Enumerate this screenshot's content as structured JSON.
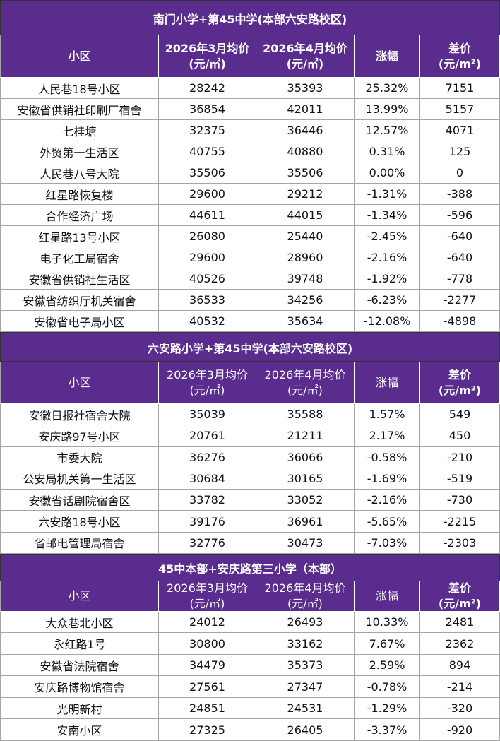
{
  "sections": [
    {
      "title": "南门小学+第45中学(本部六安路校区)",
      "header": [
        [
          "小区"
        ],
        [
          "2026年3月均价",
          "(元/㎡)"
        ],
        [
          "2026年4月均价",
          "(元/㎡)"
        ],
        [
          "涨幅"
        ],
        [
          "差价",
          "(元/m²)"
        ]
      ],
      "rows": [
        [
          "人民巷18号小区",
          "28242",
          "35393",
          "25.32%",
          "7151"
        ],
        [
          "安徽省供销社印刷厂宿舍",
          "36854",
          "42011",
          "13.99%",
          "5157"
        ],
        [
          "七桂塘",
          "32375",
          "36446",
          "12.57%",
          "4071"
        ],
        [
          "外贸第一生活区",
          "40755",
          "40880",
          "0.31%",
          "125"
        ],
        [
          "人民巷八号大院",
          "35506",
          "35506",
          "0.00%",
          "0"
        ],
        [
          "红星路恢复楼",
          "29600",
          "29212",
          "-1.31%",
          "-388"
        ],
        [
          "合作经济广场",
          "44611",
          "44015",
          "-1.34%",
          "-596"
        ],
        [
          "红星路13号小区",
          "26080",
          "25440",
          "-2.45%",
          "-640"
        ],
        [
          "电子化工局宿舍",
          "29600",
          "28960",
          "-2.16%",
          "-640"
        ],
        [
          "安徽省供销社生活区",
          "40526",
          "39748",
          "-1.92%",
          "-778"
        ],
        [
          "安徽省纺织厅机关宿舍",
          "36533",
          "34256",
          "-6.23%",
          "-2277"
        ],
        [
          "安徽省电子局小区",
          "40532",
          "35634",
          "-12.08%",
          "-4898"
        ]
      ]
    },
    {
      "title": "六安路小学+第45中学(本部六安路校区)",
      "header": [
        [
          "小区"
        ],
        [
          "2026年3月均价",
          "(元/㎡)"
        ],
        [
          "2026年4月均价",
          "(元/㎡)"
        ],
        [
          "涨幅"
        ],
        [
          "差价",
          "(元/m²)"
        ]
      ],
      "rows": [
        [
          "安徽日报社宿舍大院",
          "35039",
          "35588",
          "1.57%",
          "549"
        ],
        [
          "安庆路97号小区",
          "20761",
          "21211",
          "2.17%",
          "450"
        ],
        [
          "市委大院",
          "36276",
          "36066",
          "-0.58%",
          "-210"
        ],
        [
          "公安局机关第一生活区",
          "30684",
          "30165",
          "-1.69%",
          "-519"
        ],
        [
          "安徽省话剧院宿舍区",
          "33782",
          "33052",
          "-2.16%",
          "-730"
        ],
        [
          "六安路18号小区",
          "39176",
          "36961",
          "-5.65%",
          "-2215"
        ],
        [
          "省邮电管理局宿舍",
          "32776",
          "30473",
          "-7.03%",
          "-2303"
        ]
      ]
    },
    {
      "title": "45中本部+安庆路第三小学（本部）",
      "header": [
        [
          "小区"
        ],
        [
          "2026年3月均价",
          "(元/㎡)"
        ],
        [
          "2026年4月均价",
          "(元/㎡)"
        ],
        [
          "涨幅"
        ],
        [
          "差价",
          "(元/m²)"
        ]
      ],
      "rows": [
        [
          "大众巷北小区",
          "24012",
          "26493",
          "10.33%",
          "2481"
        ],
        [
          "永红路1号",
          "30800",
          "33162",
          "7.67%",
          "2362"
        ],
        [
          "安徽省法院宿舍",
          "34479",
          "35373",
          "2.59%",
          "894"
        ],
        [
          "安庆路博物馆宿舍",
          "27561",
          "27347",
          "-0.78%",
          "-214"
        ],
        [
          "光明新村",
          "24851",
          "24531",
          "-1.29%",
          "-320"
        ],
        [
          "安南小区",
          "27325",
          "26405",
          "-3.37%",
          "-920"
        ]
      ]
    }
  ]
}
